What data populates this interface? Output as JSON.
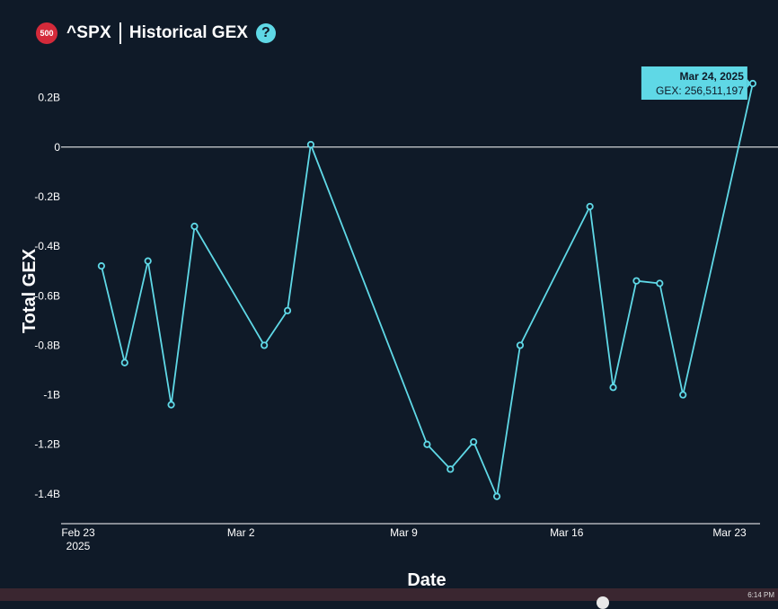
{
  "header": {
    "badge": "500",
    "ticker": "^SPX",
    "title": "Historical GEX",
    "help_glyph": "?"
  },
  "taskbar": {
    "time": "6:14 PM"
  },
  "colors": {
    "background": "#0f1a28",
    "line": "#5fd8e6",
    "badge": "#d42a3a",
    "tooltip_bg": "#5fd8e6"
  },
  "chart_data": {
    "type": "line",
    "xlabel": "Date",
    "ylabel": "Total GEX",
    "ylim": [
      -1.52,
      0.34
    ],
    "y_unit": "B",
    "yticks": [
      0.2,
      0,
      -0.2,
      -0.4,
      -0.6,
      -0.8,
      -1,
      -1.2,
      -1.4
    ],
    "ytick_labels": [
      "0.2B",
      "0",
      "-0.2B",
      "-0.4B",
      "-0.6B",
      "-0.8B",
      "-1B",
      "-1.2B",
      "-1.4B"
    ],
    "xlim": [
      "2025-02-23",
      "2025-03-25"
    ],
    "xticks": [
      {
        "date": "2025-02-23",
        "label": "Feb 23",
        "sublabel": "2025"
      },
      {
        "date": "2025-03-02",
        "label": "Mar 2",
        "sublabel": ""
      },
      {
        "date": "2025-03-09",
        "label": "Mar 9",
        "sublabel": ""
      },
      {
        "date": "2025-03-16",
        "label": "Mar 16",
        "sublabel": ""
      },
      {
        "date": "2025-03-23",
        "label": "Mar 23",
        "sublabel": ""
      }
    ],
    "zero_line": true,
    "grid": false,
    "series": [
      {
        "points": [
          {
            "x": "2025-02-24",
            "y": -0.48
          },
          {
            "x": "2025-02-25",
            "y": -0.87
          },
          {
            "x": "2025-02-26",
            "y": -0.46
          },
          {
            "x": "2025-02-27",
            "y": -1.04
          },
          {
            "x": "2025-02-28",
            "y": -0.32
          },
          {
            "x": "2025-03-03",
            "y": -0.8
          },
          {
            "x": "2025-03-04",
            "y": -0.66
          },
          {
            "x": "2025-03-05",
            "y": 0.01
          },
          {
            "x": "2025-03-10",
            "y": -1.2
          },
          {
            "x": "2025-03-11",
            "y": -1.3
          },
          {
            "x": "2025-03-12",
            "y": -1.19
          },
          {
            "x": "2025-03-13",
            "y": -1.41
          },
          {
            "x": "2025-03-14",
            "y": -0.8
          },
          {
            "x": "2025-03-17",
            "y": -0.24
          },
          {
            "x": "2025-03-18",
            "y": -0.97
          },
          {
            "x": "2025-03-19",
            "y": -0.54
          },
          {
            "x": "2025-03-20",
            "y": -0.55
          },
          {
            "x": "2025-03-21",
            "y": -1.0
          },
          {
            "x": "2025-03-24",
            "y": 0.2565
          }
        ]
      }
    ],
    "tooltip": {
      "date": "Mar 24, 2025",
      "label": "GEX: 256,511,197"
    }
  }
}
